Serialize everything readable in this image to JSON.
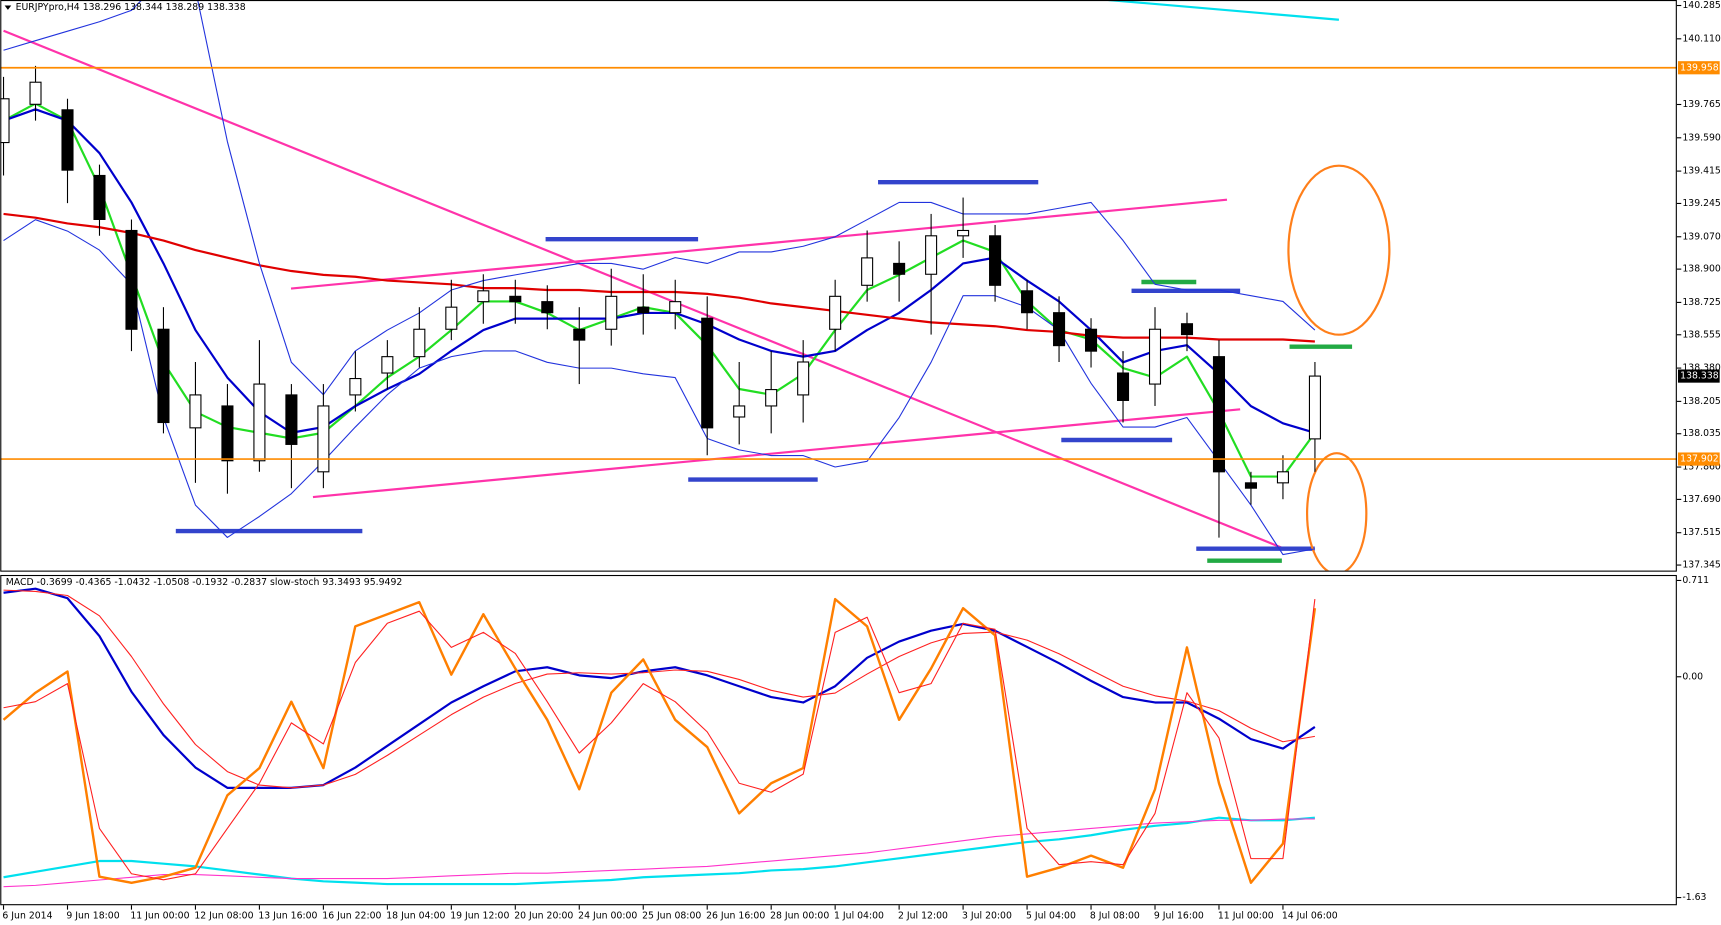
{
  "chart_data": [
    {
      "type": "candlestick",
      "title": "EURJPYpro,H4  138.296 138.344 138.289 138.338",
      "categories": [
        "6 Jun 2014",
        null,
        "9 Jun 18:00",
        null,
        "11 Jun 00:00",
        null,
        "12 Jun 08:00",
        null,
        "13 Jun 16:00",
        null,
        "16 Jun 22:00",
        null,
        "18 Jun 04:00",
        null,
        "19 Jun 12:00",
        null,
        "20 Jun 20:00",
        null,
        "24 Jun 00:00",
        null,
        "25 Jun 08:00",
        null,
        "26 Jun 16:00",
        null,
        "28 Jun 00:00",
        null,
        "1 Jul 04:00",
        null,
        "2 Jul 12:00",
        null,
        "3 Jul 20:00",
        null,
        "5 Jul 04:00",
        null,
        "8 Jul 08:00",
        null,
        "9 Jul 16:00",
        null,
        "11 Jul 00:00",
        null,
        "14 Jul 06:00",
        null
      ],
      "open": [
        139.565,
        139.766,
        139.737,
        139.392,
        139.103,
        138.584,
        138.066,
        138.181,
        137.893,
        138.239,
        137.835,
        138.239,
        138.354,
        138.44,
        138.584,
        138.729,
        138.757,
        138.729,
        138.584,
        138.584,
        138.7,
        138.671,
        138.642,
        138.123,
        138.181,
        138.239,
        138.584,
        138.815,
        138.93,
        138.873,
        139.075,
        139.075,
        138.786,
        138.671,
        138.584,
        138.354,
        138.296,
        138.613,
        138.44,
        137.777,
        137.777,
        138.008
      ],
      "high": [
        139.91,
        139.968,
        139.795,
        139.449,
        139.161,
        138.7,
        138.412,
        138.296,
        138.527,
        138.296,
        138.296,
        138.469,
        138.527,
        138.7,
        138.844,
        138.873,
        138.844,
        138.815,
        138.7,
        138.902,
        138.873,
        138.844,
        138.757,
        138.412,
        138.469,
        138.527,
        138.844,
        139.103,
        139.046,
        139.19,
        139.276,
        139.132,
        138.844,
        138.757,
        138.642,
        138.469,
        138.7,
        138.671,
        138.527,
        137.835,
        137.922,
        138.412
      ],
      "low": [
        139.392,
        139.68,
        139.247,
        139.075,
        138.469,
        138.037,
        137.777,
        137.72,
        137.835,
        137.749,
        137.749,
        138.152,
        138.267,
        138.383,
        138.527,
        138.613,
        138.613,
        138.584,
        138.296,
        138.498,
        138.556,
        138.584,
        137.922,
        137.979,
        138.037,
        138.094,
        138.469,
        138.729,
        138.729,
        138.556,
        138.959,
        138.729,
        138.584,
        138.412,
        138.383,
        138.094,
        138.181,
        138.469,
        137.489,
        137.662,
        137.691,
        137.835
      ],
      "close": [
        139.795,
        139.882,
        139.42,
        139.161,
        138.584,
        138.094,
        138.239,
        137.893,
        138.296,
        137.979,
        138.181,
        138.325,
        138.44,
        138.584,
        138.7,
        138.786,
        138.729,
        138.671,
        138.527,
        138.757,
        138.671,
        138.729,
        138.066,
        138.181,
        138.267,
        138.412,
        138.757,
        138.959,
        138.873,
        139.075,
        139.103,
        138.815,
        138.671,
        138.498,
        138.469,
        138.21,
        138.584,
        138.556,
        137.835,
        137.749,
        137.835,
        138.338
      ],
      "series": [
        {
          "color": "#22dd22",
          "values": [
            139.68,
            139.77,
            139.68,
            139.33,
            138.87,
            138.41,
            138.15,
            138.07,
            138.04,
            138.01,
            138.04,
            138.18,
            138.33,
            138.44,
            138.58,
            138.73,
            138.73,
            138.67,
            138.58,
            138.64,
            138.7,
            138.67,
            138.5,
            138.27,
            138.24,
            138.35,
            138.58,
            138.79,
            138.87,
            138.96,
            139.05,
            138.99,
            138.73,
            138.58,
            138.53,
            138.38,
            138.33,
            138.44,
            138.15,
            137.81,
            137.81,
            138.04
          ]
        },
        {
          "color": "#0000cc",
          "values": [
            139.68,
            139.74,
            139.68,
            139.51,
            139.25,
            138.93,
            138.58,
            138.33,
            138.15,
            138.04,
            138.07,
            138.18,
            138.27,
            138.35,
            138.47,
            138.58,
            138.64,
            138.64,
            138.64,
            138.64,
            138.67,
            138.67,
            138.61,
            138.53,
            138.47,
            138.44,
            138.47,
            138.58,
            138.67,
            138.79,
            138.93,
            138.96,
            138.84,
            138.73,
            138.58,
            138.41,
            138.47,
            138.5,
            138.35,
            138.18,
            138.09,
            138.04
          ]
        },
        {
          "color": "#e00000",
          "values": [
            139.19,
            139.17,
            139.14,
            139.12,
            139.09,
            139.05,
            139.0,
            138.96,
            138.92,
            138.89,
            138.87,
            138.86,
            138.84,
            138.83,
            138.82,
            138.8,
            138.8,
            138.79,
            138.79,
            138.78,
            138.78,
            138.78,
            138.77,
            138.75,
            138.72,
            138.7,
            138.68,
            138.66,
            138.64,
            138.62,
            138.61,
            138.6,
            138.58,
            138.57,
            138.55,
            138.54,
            138.54,
            138.54,
            138.53,
            138.53,
            138.53,
            138.52
          ]
        },
        {
          "color": "#2233dd",
          "values": [
            140.05,
            140.1,
            140.15,
            140.2,
            140.26,
            140.43,
            140.37,
            139.57,
            138.93,
            138.41,
            138.24,
            138.47,
            138.58,
            138.67,
            138.79,
            138.84,
            138.87,
            138.9,
            138.93,
            138.93,
            138.9,
            138.96,
            138.93,
            138.99,
            138.99,
            139.02,
            139.07,
            139.16,
            139.25,
            139.25,
            139.19,
            139.19,
            139.19,
            139.22,
            139.25,
            139.05,
            138.82,
            138.79,
            138.79,
            138.76,
            138.73,
            138.58
          ]
        },
        {
          "color": "#2233dd",
          "values": [
            139.05,
            139.16,
            139.1,
            139.0,
            138.82,
            138.12,
            137.66,
            137.49,
            137.6,
            137.72,
            137.89,
            138.07,
            138.24,
            138.38,
            138.44,
            138.47,
            138.47,
            138.41,
            138.38,
            138.38,
            138.35,
            138.33,
            138.01,
            137.95,
            137.92,
            137.92,
            137.86,
            137.89,
            138.12,
            138.41,
            138.76,
            138.76,
            138.7,
            138.58,
            138.3,
            138.07,
            138.07,
            138.12,
            137.89,
            137.66,
            137.4,
            137.43
          ]
        }
      ],
      "hlines": [
        {
          "value": 139.958,
          "color": "#ff8c00"
        },
        {
          "value": 137.902,
          "color": "#ff8c00"
        }
      ],
      "last_price": 138.338,
      "ylim": [
        137.316,
        140.314
      ],
      "yticks": [
        140.285,
        {
          "value": 140.11,
          "label": "140.110"
        },
        139.765,
        {
          "value": 139.59,
          "label": "139.590"
        },
        139.415,
        139.245,
        {
          "value": 139.07,
          "label": "139.070"
        },
        {
          "value": 138.9,
          "label": "138.900"
        },
        138.725,
        138.555,
        {
          "value": 138.38,
          "label": "138.380"
        },
        138.205,
        138.035,
        {
          "value": 137.86,
          "label": "137.860"
        },
        {
          "value": 137.69,
          "label": "137.690"
        },
        137.515,
        137.345
      ],
      "grid": false
    },
    {
      "type": "line",
      "title": "MACD -0.3699 -0.4365 -1.0432 -1.0508 -0.1932 -0.2837  slow-stoch 93.3493 95.9492",
      "series": [
        {
          "color": "#0000cc",
          "values": [
            0.62,
            0.65,
            0.58,
            0.3,
            -0.11,
            -0.43,
            -0.67,
            -0.82,
            -0.82,
            -0.82,
            -0.8,
            -0.67,
            -0.51,
            -0.35,
            -0.19,
            -0.07,
            0.04,
            0.07,
            0.01,
            -0.01,
            0.04,
            0.07,
            0.01,
            -0.07,
            -0.15,
            -0.19,
            -0.07,
            0.14,
            0.26,
            0.34,
            0.39,
            0.34,
            0.22,
            0.1,
            -0.03,
            -0.15,
            -0.19,
            -0.19,
            -0.31,
            -0.46,
            -0.53,
            -0.37
          ]
        },
        {
          "color": "#ff2020",
          "values": [
            0.64,
            0.63,
            0.6,
            0.45,
            0.15,
            -0.2,
            -0.5,
            -0.7,
            -0.8,
            -0.82,
            -0.8,
            -0.72,
            -0.58,
            -0.43,
            -0.28,
            -0.15,
            -0.05,
            0.02,
            0.03,
            0.02,
            0.03,
            0.05,
            0.04,
            -0.02,
            -0.1,
            -0.15,
            -0.12,
            0.02,
            0.15,
            0.25,
            0.32,
            0.33,
            0.27,
            0.17,
            0.05,
            -0.07,
            -0.14,
            -0.18,
            -0.25,
            -0.38,
            -0.48,
            -0.44
          ]
        },
        {
          "color": "#00e0ee",
          "values": [
            -1.48,
            -1.44,
            -1.4,
            -1.36,
            -1.36,
            -1.38,
            -1.4,
            -1.43,
            -1.46,
            -1.49,
            -1.51,
            -1.52,
            -1.53,
            -1.53,
            -1.53,
            -1.53,
            -1.53,
            -1.52,
            -1.51,
            -1.5,
            -1.48,
            -1.47,
            -1.46,
            -1.45,
            -1.43,
            -1.42,
            -1.4,
            -1.37,
            -1.34,
            -1.31,
            -1.28,
            -1.25,
            -1.22,
            -1.2,
            -1.17,
            -1.13,
            -1.1,
            -1.08,
            -1.04,
            -1.06,
            -1.06,
            -1.04
          ]
        },
        {
          "color": "#ff33cc",
          "values": [
            -1.55,
            -1.54,
            -1.52,
            -1.5,
            -1.48,
            -1.46,
            -1.46,
            -1.47,
            -1.48,
            -1.49,
            -1.49,
            -1.49,
            -1.49,
            -1.48,
            -1.47,
            -1.46,
            -1.45,
            -1.45,
            -1.44,
            -1.43,
            -1.42,
            -1.41,
            -1.4,
            -1.38,
            -1.36,
            -1.34,
            -1.32,
            -1.3,
            -1.27,
            -1.24,
            -1.21,
            -1.18,
            -1.16,
            -1.14,
            -1.12,
            -1.1,
            -1.08,
            -1.07,
            -1.06,
            -1.06,
            -1.05,
            -1.05
          ]
        },
        {
          "color": "#ff7f00",
          "axis": "y2",
          "values": [
            56,
            65,
            72,
            4,
            2,
            4,
            7,
            31,
            40,
            62,
            40,
            87,
            91,
            95,
            71,
            91,
            73,
            56,
            33,
            65,
            76,
            56,
            47,
            25,
            35,
            40,
            96,
            87,
            56,
            73,
            93,
            84,
            4,
            7,
            11,
            7,
            33,
            80,
            35,
            2,
            15,
            93
          ]
        },
        {
          "color": "#ff2020",
          "axis": "y2",
          "values": [
            60,
            62,
            68,
            20,
            5,
            3,
            5,
            20,
            35,
            55,
            48,
            75,
            88,
            92,
            80,
            85,
            78,
            62,
            45,
            55,
            68,
            62,
            52,
            35,
            32,
            38,
            85,
            90,
            65,
            68,
            88,
            86,
            20,
            8,
            9,
            8,
            25,
            65,
            50,
            10,
            10,
            96
          ]
        }
      ],
      "ylim": [
        -1.63,
        0.711
      ],
      "yticks": [
        0.711,
        {
          "value": 0,
          "label": "0.00"
        },
        -1.63
      ],
      "y2lim": [
        0,
        100
      ]
    }
  ]
}
